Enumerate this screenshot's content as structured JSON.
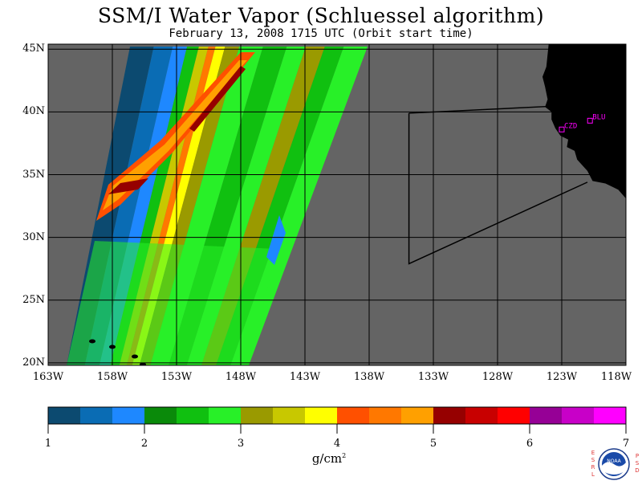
{
  "header": {
    "title": "SSM/I Water Vapor (Schluessel algorithm)",
    "subtitle": "February 13, 2008  1715 UTC  (Orbit start time)"
  },
  "map": {
    "lon_range": [
      -163,
      -118
    ],
    "lat_range": [
      19.8,
      45.4
    ],
    "ocean_color": "#646464",
    "land_color": "#000000",
    "grid_color": "#000000",
    "lat_labels": [
      {
        "lat": 45,
        "text": "45N"
      },
      {
        "lat": 40,
        "text": "40N"
      },
      {
        "lat": 35,
        "text": "35N"
      },
      {
        "lat": 30,
        "text": "30N"
      },
      {
        "lat": 25,
        "text": "25N"
      },
      {
        "lat": 20,
        "text": "20N"
      }
    ],
    "lon_labels": [
      {
        "lon": -163,
        "text": "163W"
      },
      {
        "lon": -158,
        "text": "158W"
      },
      {
        "lon": -153,
        "text": "153W"
      },
      {
        "lon": -148,
        "text": "148W"
      },
      {
        "lon": -143,
        "text": "143W"
      },
      {
        "lon": -138,
        "text": "138W"
      },
      {
        "lon": -133,
        "text": "133W"
      },
      {
        "lon": -128,
        "text": "128W"
      },
      {
        "lon": -123,
        "text": "123W"
      },
      {
        "lon": -118,
        "text": "118W"
      }
    ],
    "stations": [
      {
        "id": "CZD",
        "lon": -123.0,
        "lat": 38.6
      },
      {
        "id": "BLU",
        "lon": -120.8,
        "lat": 39.3
      }
    ],
    "station_color": "#ff00ff",
    "flight_track": [
      {
        "lon": -134.9,
        "lat": 39.9
      },
      {
        "lon": -134.9,
        "lat": 27.9
      },
      {
        "lon": -121.0,
        "lat": 34.4
      }
    ],
    "flight_track_tail": [
      {
        "lon": -134.9,
        "lat": 39.9
      },
      {
        "lon": -122.8,
        "lat": 40.5
      }
    ]
  },
  "colorbar": {
    "unit": "g/cm",
    "unit_exponent": "2",
    "tick_labels": [
      "1",
      "2",
      "3",
      "4",
      "5",
      "6",
      "7"
    ],
    "colors": [
      "#0c4a70",
      "#0a6cb4",
      "#1e88ff",
      "#0a8a0a",
      "#10c010",
      "#28f028",
      "#9a9a00",
      "#c8c800",
      "#ffff00",
      "#ff5000",
      "#ff7800",
      "#ffa000",
      "#960000",
      "#c80000",
      "#ff0000",
      "#960096",
      "#c800c8",
      "#ff00ff"
    ]
  },
  "logo": {
    "text": "NOAA",
    "left_letters": [
      "E",
      "S",
      "R",
      "L"
    ],
    "right_letters": [
      "P",
      "S",
      "D"
    ]
  }
}
